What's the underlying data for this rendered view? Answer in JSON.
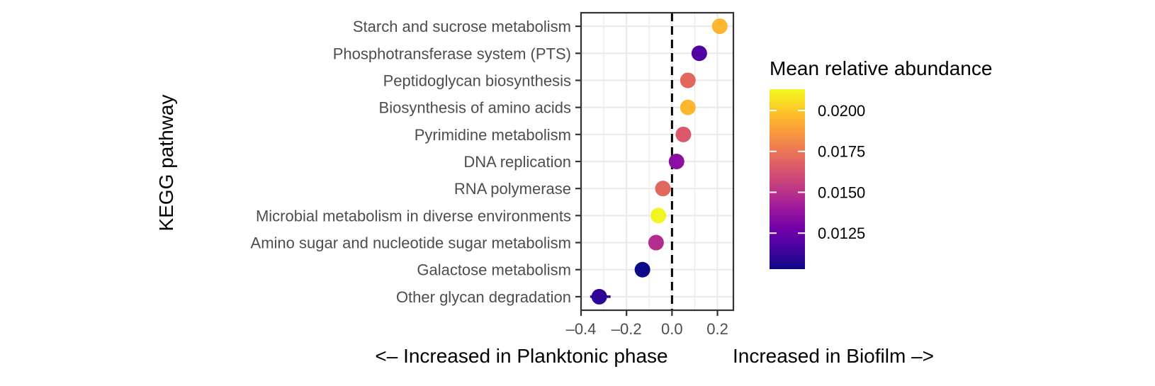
{
  "chart_data": {
    "type": "scatter",
    "ylabel": "KEGG pathway",
    "xlabel_left": "<– Increased in Planktonic phase",
    "xlabel_right": "Increased in Biofilm –>",
    "xlim": [
      -0.4,
      0.27
    ],
    "xticks": [
      -0.4,
      -0.2,
      0.0,
      0.2
    ],
    "xtick_labels": [
      "–0.4",
      "–0.2",
      "0.0",
      "0.2"
    ],
    "reference_line_x": 0,
    "grid": true,
    "categories": [
      "Starch and sucrose metabolism",
      "Phosphotransferase system (PTS)",
      "Peptidoglycan biosynthesis",
      "Biosynthesis of amino acids",
      "Pyrimidine metabolism",
      "DNA replication",
      "RNA polymerase",
      "Microbial metabolism in diverse environments",
      "Amino sugar and nucleotide sugar metabolism",
      "Galactose metabolism",
      "Other glycan degradation"
    ],
    "values": [
      0.21,
      0.12,
      0.07,
      0.07,
      0.05,
      0.02,
      -0.04,
      -0.06,
      -0.07,
      -0.13,
      -0.32
    ],
    "error_low": [
      0.21,
      0.12,
      0.07,
      0.07,
      0.05,
      0.02,
      -0.04,
      -0.06,
      -0.07,
      -0.13,
      -0.36
    ],
    "error_high": [
      0.21,
      0.12,
      0.07,
      0.07,
      0.05,
      0.02,
      -0.04,
      -0.06,
      -0.07,
      -0.13,
      -0.27
    ],
    "color_values": [
      0.0195,
      0.0118,
      0.017,
      0.0195,
      0.0165,
      0.0135,
      0.017,
      0.0212,
      0.0148,
      0.0103,
      0.011
    ],
    "legend": {
      "title": "Mean relative abundance",
      "range": [
        0.0103,
        0.0213
      ],
      "ticks": [
        0.0125,
        0.015,
        0.0175,
        0.02
      ],
      "tick_labels": [
        "0.0125",
        "0.0150",
        "0.0175",
        "0.0200"
      ],
      "placement": "right"
    },
    "colormap": [
      "#0d0887",
      "#46039f",
      "#7201a8",
      "#9c179e",
      "#bd3786",
      "#d8576b",
      "#ed7953",
      "#fb9f3a",
      "#fdca26",
      "#f0f921"
    ]
  }
}
